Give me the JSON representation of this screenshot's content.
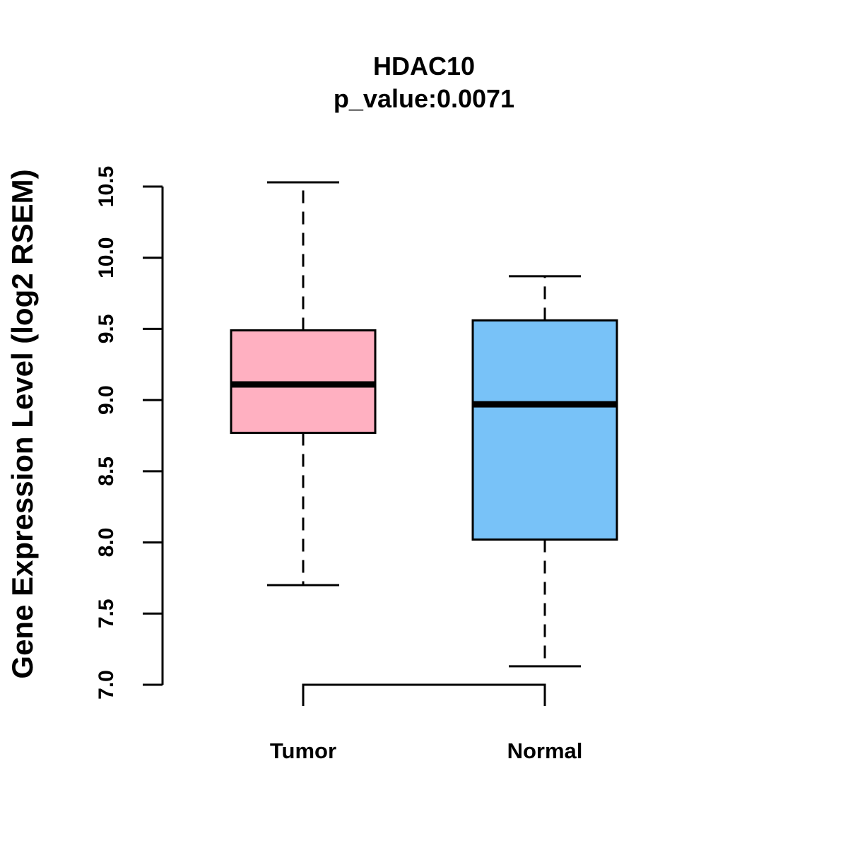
{
  "chart_data": {
    "type": "boxplot",
    "title": "HDAC10",
    "subtitle": "p_value:0.0071",
    "xlabel": "",
    "ylabel": "Gene Expression Level (log2 RSEM)",
    "ylim": [
      7.0,
      10.5
    ],
    "yticks": [
      7.0,
      7.5,
      8.0,
      8.5,
      9.0,
      9.5,
      10.0,
      10.5
    ],
    "ytick_labels": [
      "7.0",
      "7.5",
      "8.0",
      "8.5",
      "9.0",
      "9.5",
      "10.0",
      "10.5"
    ],
    "categories": [
      "Tumor",
      "Normal"
    ],
    "boxes": [
      {
        "name": "Tumor",
        "whisker_low": 7.7,
        "q1": 8.77,
        "median": 9.11,
        "q3": 9.49,
        "whisker_high": 10.53,
        "color": "#FFB0C1"
      },
      {
        "name": "Normal",
        "whisker_low": 7.13,
        "q1": 8.02,
        "median": 8.97,
        "q3": 9.56,
        "whisker_high": 9.87,
        "color": "#78C2F8"
      }
    ],
    "significance_bracket": {
      "between": [
        "Tumor",
        "Normal"
      ],
      "label": ""
    },
    "grid": false,
    "legend": "none"
  }
}
